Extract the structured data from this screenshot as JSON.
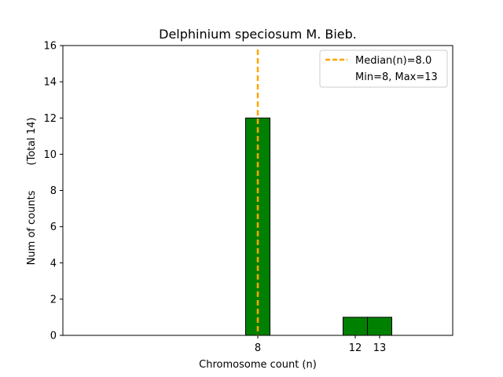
{
  "chart_data": {
    "type": "bar",
    "title": "Delphinium speciosum M. Bieb.",
    "xlabel": "Chromosome count (n)",
    "ylabel": "Num of counts",
    "ylabel_total": "(Total 14)",
    "xlim": [
      0,
      16
    ],
    "ylim": [
      0,
      16
    ],
    "yticks": [
      0,
      2,
      4,
      6,
      8,
      10,
      12,
      14,
      16
    ],
    "xticks": [
      8,
      12,
      13
    ],
    "bar_width": 1,
    "bar_color": "#008000",
    "bar_edge_color": "#000000",
    "bars": [
      {
        "x": 8,
        "value": 12
      },
      {
        "x": 12,
        "value": 1
      },
      {
        "x": 13,
        "value": 1
      }
    ],
    "median": {
      "x": 8.0,
      "color": "#FFA500",
      "style": "dashed"
    },
    "legend": {
      "placement": "top-right",
      "entries": [
        "Median(n)=8.0",
        "Min=8, Max=13"
      ]
    },
    "grid": false
  }
}
